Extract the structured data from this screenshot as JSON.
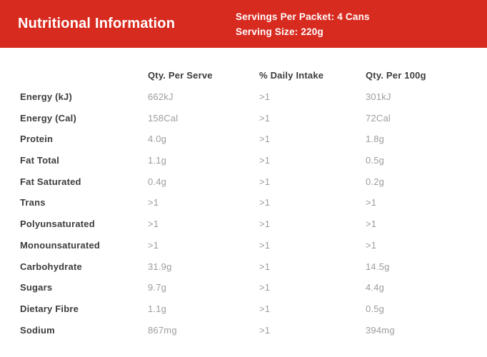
{
  "header": {
    "title": "Nutritional Information",
    "servings_per_packet": "Servings Per Packet: 4 Cans",
    "serving_size": "Serving Size: 220g"
  },
  "table": {
    "columns": {
      "per_serve": "Qty. Per Serve",
      "daily_intake": "% Daily Intake",
      "per_100g": "Qty. Per 100g"
    },
    "rows": [
      {
        "label": "Energy (kJ)",
        "per_serve": "662kJ",
        "daily_intake": ">1",
        "per_100g": "301kJ"
      },
      {
        "label": "Energy (Cal)",
        "per_serve": "158Cal",
        "daily_intake": ">1",
        "per_100g": "72Cal"
      },
      {
        "label": "Protein",
        "per_serve": "4.0g",
        "daily_intake": ">1",
        "per_100g": "1.8g"
      },
      {
        "label": "Fat Total",
        "per_serve": "1.1g",
        "daily_intake": ">1",
        "per_100g": "0.5g"
      },
      {
        "label": "Fat Saturated",
        "per_serve": "0.4g",
        "daily_intake": ">1",
        "per_100g": "0.2g"
      },
      {
        "label": "Trans",
        "per_serve": ">1",
        "daily_intake": ">1",
        "per_100g": ">1"
      },
      {
        "label": "Polyunsaturated",
        "per_serve": ">1",
        "daily_intake": ">1",
        "per_100g": ">1"
      },
      {
        "label": "Monounsaturated",
        "per_serve": ">1",
        "daily_intake": ">1",
        "per_100g": ">1"
      },
      {
        "label": "Carbohydrate",
        "per_serve": "31.9g",
        "daily_intake": ">1",
        "per_100g": "14.5g"
      },
      {
        "label": "Sugars",
        "per_serve": "9.7g",
        "daily_intake": ">1",
        "per_100g": "4.4g"
      },
      {
        "label": "Dietary Fibre",
        "per_serve": "1.1g",
        "daily_intake": ">1",
        "per_100g": "0.5g"
      },
      {
        "label": "Sodium",
        "per_serve": "867mg",
        "daily_intake": ">1",
        "per_100g": "394mg"
      }
    ]
  },
  "colors": {
    "header_background": "#d82b20",
    "header_text": "#ffffff",
    "label_text": "#3c3c3c",
    "value_text": "#9c9c9c"
  }
}
